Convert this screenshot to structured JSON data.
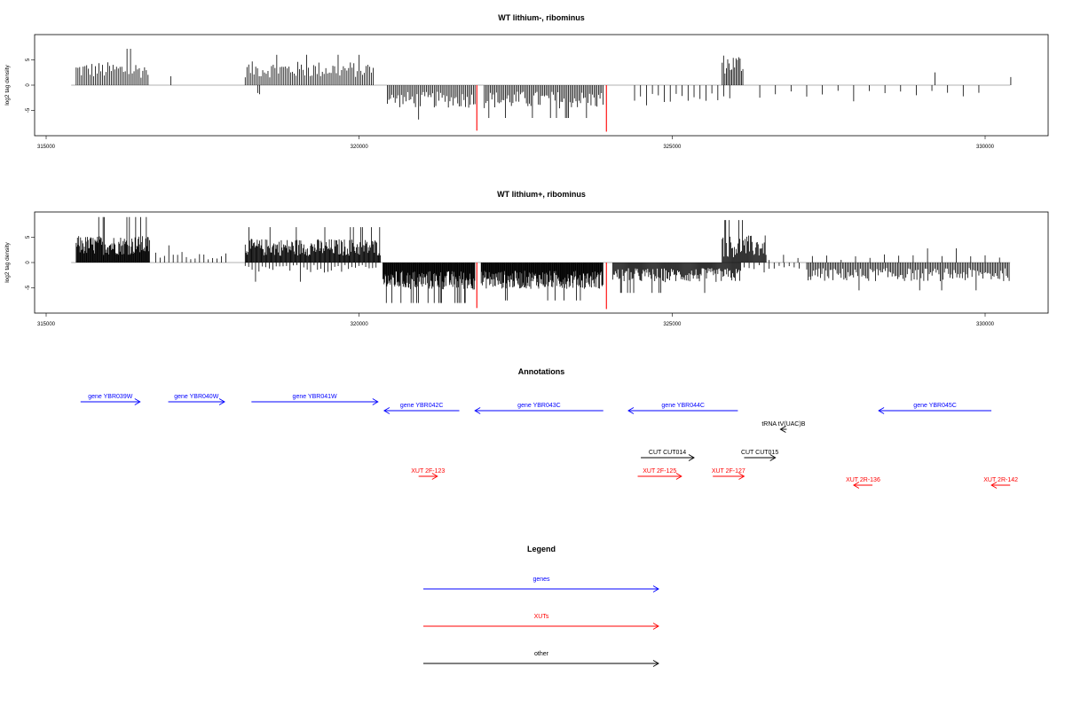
{
  "colors": {
    "gene": "#0000ff",
    "xut": "#ff0000",
    "other": "#000000",
    "highlight": "#ff0000",
    "axis": "#000000"
  },
  "chart_data": [
    {
      "type": "bar",
      "title": "WT lithium-, ribominus",
      "xlabel": "",
      "ylabel": "log2 tag density",
      "xlim": [
        314600,
        331000
      ],
      "ylim": [
        -10,
        10
      ],
      "xticks": [
        315000,
        320000,
        325000,
        330000
      ],
      "xtick_labels": [
        "315000",
        "320000",
        "325000",
        "330000"
      ],
      "yticks": [
        -5,
        0,
        5
      ],
      "ytick_labels": [
        "-5",
        "0",
        "5"
      ],
      "baseline_range": [
        315400,
        330400
      ],
      "positive_regions": [
        {
          "start": 315480,
          "end": 316650,
          "step": 28,
          "base": 3.0,
          "amp": 1.6,
          "max": 7.2
        },
        {
          "start": 316990,
          "end": 317010,
          "step": 40,
          "base": 1.6,
          "amp": 0.2,
          "max": 1.8
        },
        {
          "start": 318180,
          "end": 320230,
          "step": 28,
          "base": 3.1,
          "amp": 1.6,
          "max": 6.0
        },
        {
          "start": 325800,
          "end": 326150,
          "step": 22,
          "base": 4.2,
          "amp": 2.0,
          "max": 7.5
        },
        {
          "start": 330410,
          "end": 330420,
          "step": 40,
          "base": 1.6,
          "amp": 0.1,
          "max": 1.7
        },
        {
          "start": 329200,
          "end": 329210,
          "step": 40,
          "base": 2.6,
          "amp": 0.1,
          "max": 2.7
        }
      ],
      "negative_regions": [
        {
          "start": 318380,
          "end": 318420,
          "step": 30,
          "base": -1.6,
          "amp": 0.2,
          "max": -1.8
        },
        {
          "start": 320450,
          "end": 321850,
          "step": 25,
          "base": -2.9,
          "amp": 1.6,
          "max": -6.8
        },
        {
          "start": 322000,
          "end": 323900,
          "step": 24,
          "base": -2.9,
          "amp": 1.7,
          "max": -6.5
        },
        {
          "start": 324400,
          "end": 325950,
          "step": 95,
          "base": -2.6,
          "amp": 1.1,
          "max": -4.0
        },
        {
          "start": 326400,
          "end": 330100,
          "step": 250,
          "base": -1.8,
          "amp": 0.7,
          "max": -3.2
        }
      ],
      "highlights": [
        {
          "x": 321880,
          "value": -9.0
        },
        {
          "x": 323950,
          "value": -9.2
        }
      ]
    },
    {
      "type": "bar",
      "title": "WT lithium+, ribominus",
      "xlabel": "",
      "ylabel": "log2 tag density",
      "xlim": [
        314600,
        331000
      ],
      "ylim": [
        -10,
        10
      ],
      "xticks": [
        315000,
        320000,
        325000,
        330000
      ],
      "xtick_labels": [
        "315000",
        "320000",
        "325000",
        "330000"
      ],
      "yticks": [
        -5,
        0,
        5
      ],
      "ytick_labels": [
        "-5",
        "0",
        "5"
      ],
      "baseline_range": [
        315400,
        330400
      ],
      "positive_regions": [
        {
          "start": 315480,
          "end": 316650,
          "step": 10,
          "base": 3.4,
          "amp": 1.9,
          "max": 9.0
        },
        {
          "start": 316750,
          "end": 317900,
          "step": 70,
          "base": 1.4,
          "amp": 0.8,
          "max": 3.4
        },
        {
          "start": 318180,
          "end": 320350,
          "step": 12,
          "base": 3.0,
          "amp": 1.7,
          "max": 7.0
        },
        {
          "start": 325800,
          "end": 326500,
          "step": 14,
          "base": 3.2,
          "amp": 2.2,
          "max": 8.4
        },
        {
          "start": 326550,
          "end": 330400,
          "step": 230,
          "base": 1.0,
          "amp": 0.6,
          "max": 2.8
        }
      ],
      "negative_regions": [
        {
          "start": 318180,
          "end": 320300,
          "step": 55,
          "base": -1.2,
          "amp": 0.8,
          "max": -3.8
        },
        {
          "start": 320380,
          "end": 321850,
          "step": 9,
          "base": -3.5,
          "amp": 1.9,
          "max": -8.0
        },
        {
          "start": 321950,
          "end": 323900,
          "step": 9,
          "base": -3.4,
          "amp": 1.8,
          "max": -7.5
        },
        {
          "start": 324050,
          "end": 326100,
          "step": 14,
          "base": -2.5,
          "amp": 1.4,
          "max": -6.0
        },
        {
          "start": 326150,
          "end": 327100,
          "step": 80,
          "base": -1.2,
          "amp": 0.8,
          "max": -2.8
        },
        {
          "start": 327150,
          "end": 330400,
          "step": 22,
          "base": -2.4,
          "amp": 1.3,
          "max": -5.5
        }
      ],
      "highlights": [
        {
          "x": 321880,
          "value": -9.0
        },
        {
          "x": 323950,
          "value": -9.2
        }
      ]
    }
  ],
  "annotations": {
    "title": "Annotations",
    "features": [
      {
        "label": "gene YBR039W",
        "type": "gene",
        "strand": "+",
        "start": 315550,
        "end": 316500,
        "row": 0
      },
      {
        "label": "gene YBR040W",
        "type": "gene",
        "strand": "+",
        "start": 316950,
        "end": 317850,
        "row": 0
      },
      {
        "label": "gene YBR041W",
        "type": "gene",
        "strand": "+",
        "start": 318280,
        "end": 320300,
        "row": 0
      },
      {
        "label": "gene YBR042C",
        "type": "gene",
        "strand": "-",
        "start": 320400,
        "end": 321600,
        "row": 1
      },
      {
        "label": "gene YBR043C",
        "type": "gene",
        "strand": "-",
        "start": 321850,
        "end": 323900,
        "row": 1
      },
      {
        "label": "gene YBR044C",
        "type": "gene",
        "strand": "-",
        "start": 324300,
        "end": 326050,
        "row": 1
      },
      {
        "label": "gene YBR045C",
        "type": "gene",
        "strand": "-",
        "start": 328300,
        "end": 330100,
        "row": 1
      },
      {
        "label": "tRNA tV(UAC)B",
        "type": "other",
        "strand": "-",
        "start": 326730,
        "end": 326830,
        "row": 2
      },
      {
        "label": "CUT CUT014",
        "type": "other",
        "strand": "+",
        "start": 324500,
        "end": 325350,
        "row": 3
      },
      {
        "label": "CUT CUT015",
        "type": "other",
        "strand": "+",
        "start": 326150,
        "end": 326650,
        "row": 3
      },
      {
        "label": "XUT 2F-123",
        "type": "xut",
        "strand": "+",
        "start": 320950,
        "end": 321250,
        "row": 4
      },
      {
        "label": "XUT 2F-125",
        "type": "xut",
        "strand": "+",
        "start": 324450,
        "end": 325150,
        "row": 4
      },
      {
        "label": "XUT 2F-127",
        "type": "xut",
        "strand": "+",
        "start": 325650,
        "end": 326150,
        "row": 4
      },
      {
        "label": "XUT 2R-136",
        "type": "xut",
        "strand": "-",
        "start": 327900,
        "end": 328200,
        "row": 5
      },
      {
        "label": "XUT 2R-142",
        "type": "xut",
        "strand": "-",
        "start": 330100,
        "end": 330400,
        "row": 5
      }
    ]
  },
  "legend": {
    "title": "Legend",
    "items": [
      {
        "label": "genes",
        "type": "gene"
      },
      {
        "label": "XUTs",
        "type": "xut"
      },
      {
        "label": "other",
        "type": "other"
      }
    ]
  }
}
